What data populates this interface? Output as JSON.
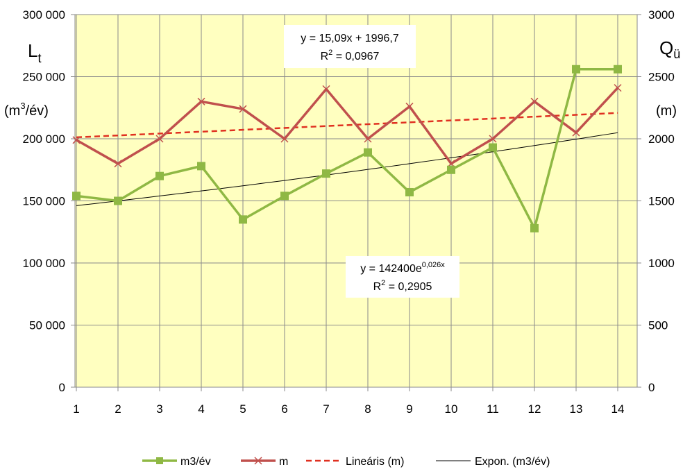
{
  "chart_data": {
    "type": "line",
    "x": [
      1,
      2,
      3,
      4,
      5,
      6,
      7,
      8,
      9,
      10,
      11,
      12,
      13,
      14
    ],
    "x_tick_labels": [
      "1",
      "2",
      "3",
      "4",
      "5",
      "6",
      "7",
      "8",
      "9",
      "10",
      "11",
      "12",
      "13",
      "14"
    ],
    "y_left": {
      "label_main": "L",
      "label_sub": "t",
      "unit_pre": "(m",
      "unit_sup": "3",
      "unit_post": "/év)",
      "ylim": [
        0,
        300000
      ],
      "ticks": [
        0,
        50000,
        100000,
        150000,
        200000,
        250000,
        300000
      ],
      "tick_labels": [
        "0",
        "50 000",
        "100 000",
        "150 000",
        "200 000",
        "250 000",
        "300 000"
      ]
    },
    "y_right": {
      "label_main": "Q",
      "label_sub": "ü",
      "unit": "(m)",
      "ylim": [
        0,
        3000
      ],
      "ticks": [
        0,
        500,
        1000,
        1500,
        2000,
        2500,
        3000
      ],
      "tick_labels": [
        "0",
        "500",
        "1000",
        "1500",
        "2000",
        "2500",
        "3000"
      ]
    },
    "series": [
      {
        "name": "m3/év",
        "axis": "left",
        "color": "#8fb844",
        "marker": "square",
        "values": [
          154000,
          150000,
          170000,
          178000,
          135000,
          154000,
          172000,
          189000,
          157000,
          175000,
          193000,
          128000,
          256000,
          256000
        ]
      },
      {
        "name": "m",
        "axis": "right",
        "color": "#c0504d",
        "marker": "x",
        "values": [
          1990,
          1800,
          2000,
          2300,
          2240,
          2000,
          2400,
          2000,
          2260,
          1800,
          2000,
          2300,
          2050,
          2410
        ]
      },
      {
        "name": "Lineáris (m)",
        "axis": "right",
        "color": "#e03020",
        "style": "dashed",
        "trend": "linear",
        "slope": 15.09,
        "intercept": 1996.7
      },
      {
        "name": "Expon. (m3/év)",
        "axis": "left",
        "color": "#000000",
        "style": "solid",
        "trend": "exponential",
        "a": 142400,
        "b": 0.026
      }
    ],
    "annotations": [
      {
        "line1": "y = 15,09x + 1996,7",
        "line2_pre": "R",
        "line2_sup": "2",
        "line2_post": " = 0,0967"
      },
      {
        "line1_pre": "y = 142400e",
        "line1_sup": "0,026x",
        "line2_pre": "R",
        "line2_sup": "2",
        "line2_post": " = 0,2905"
      }
    ],
    "legend_position": "bottom",
    "grid": true,
    "plot_background": "#ffffc0"
  }
}
